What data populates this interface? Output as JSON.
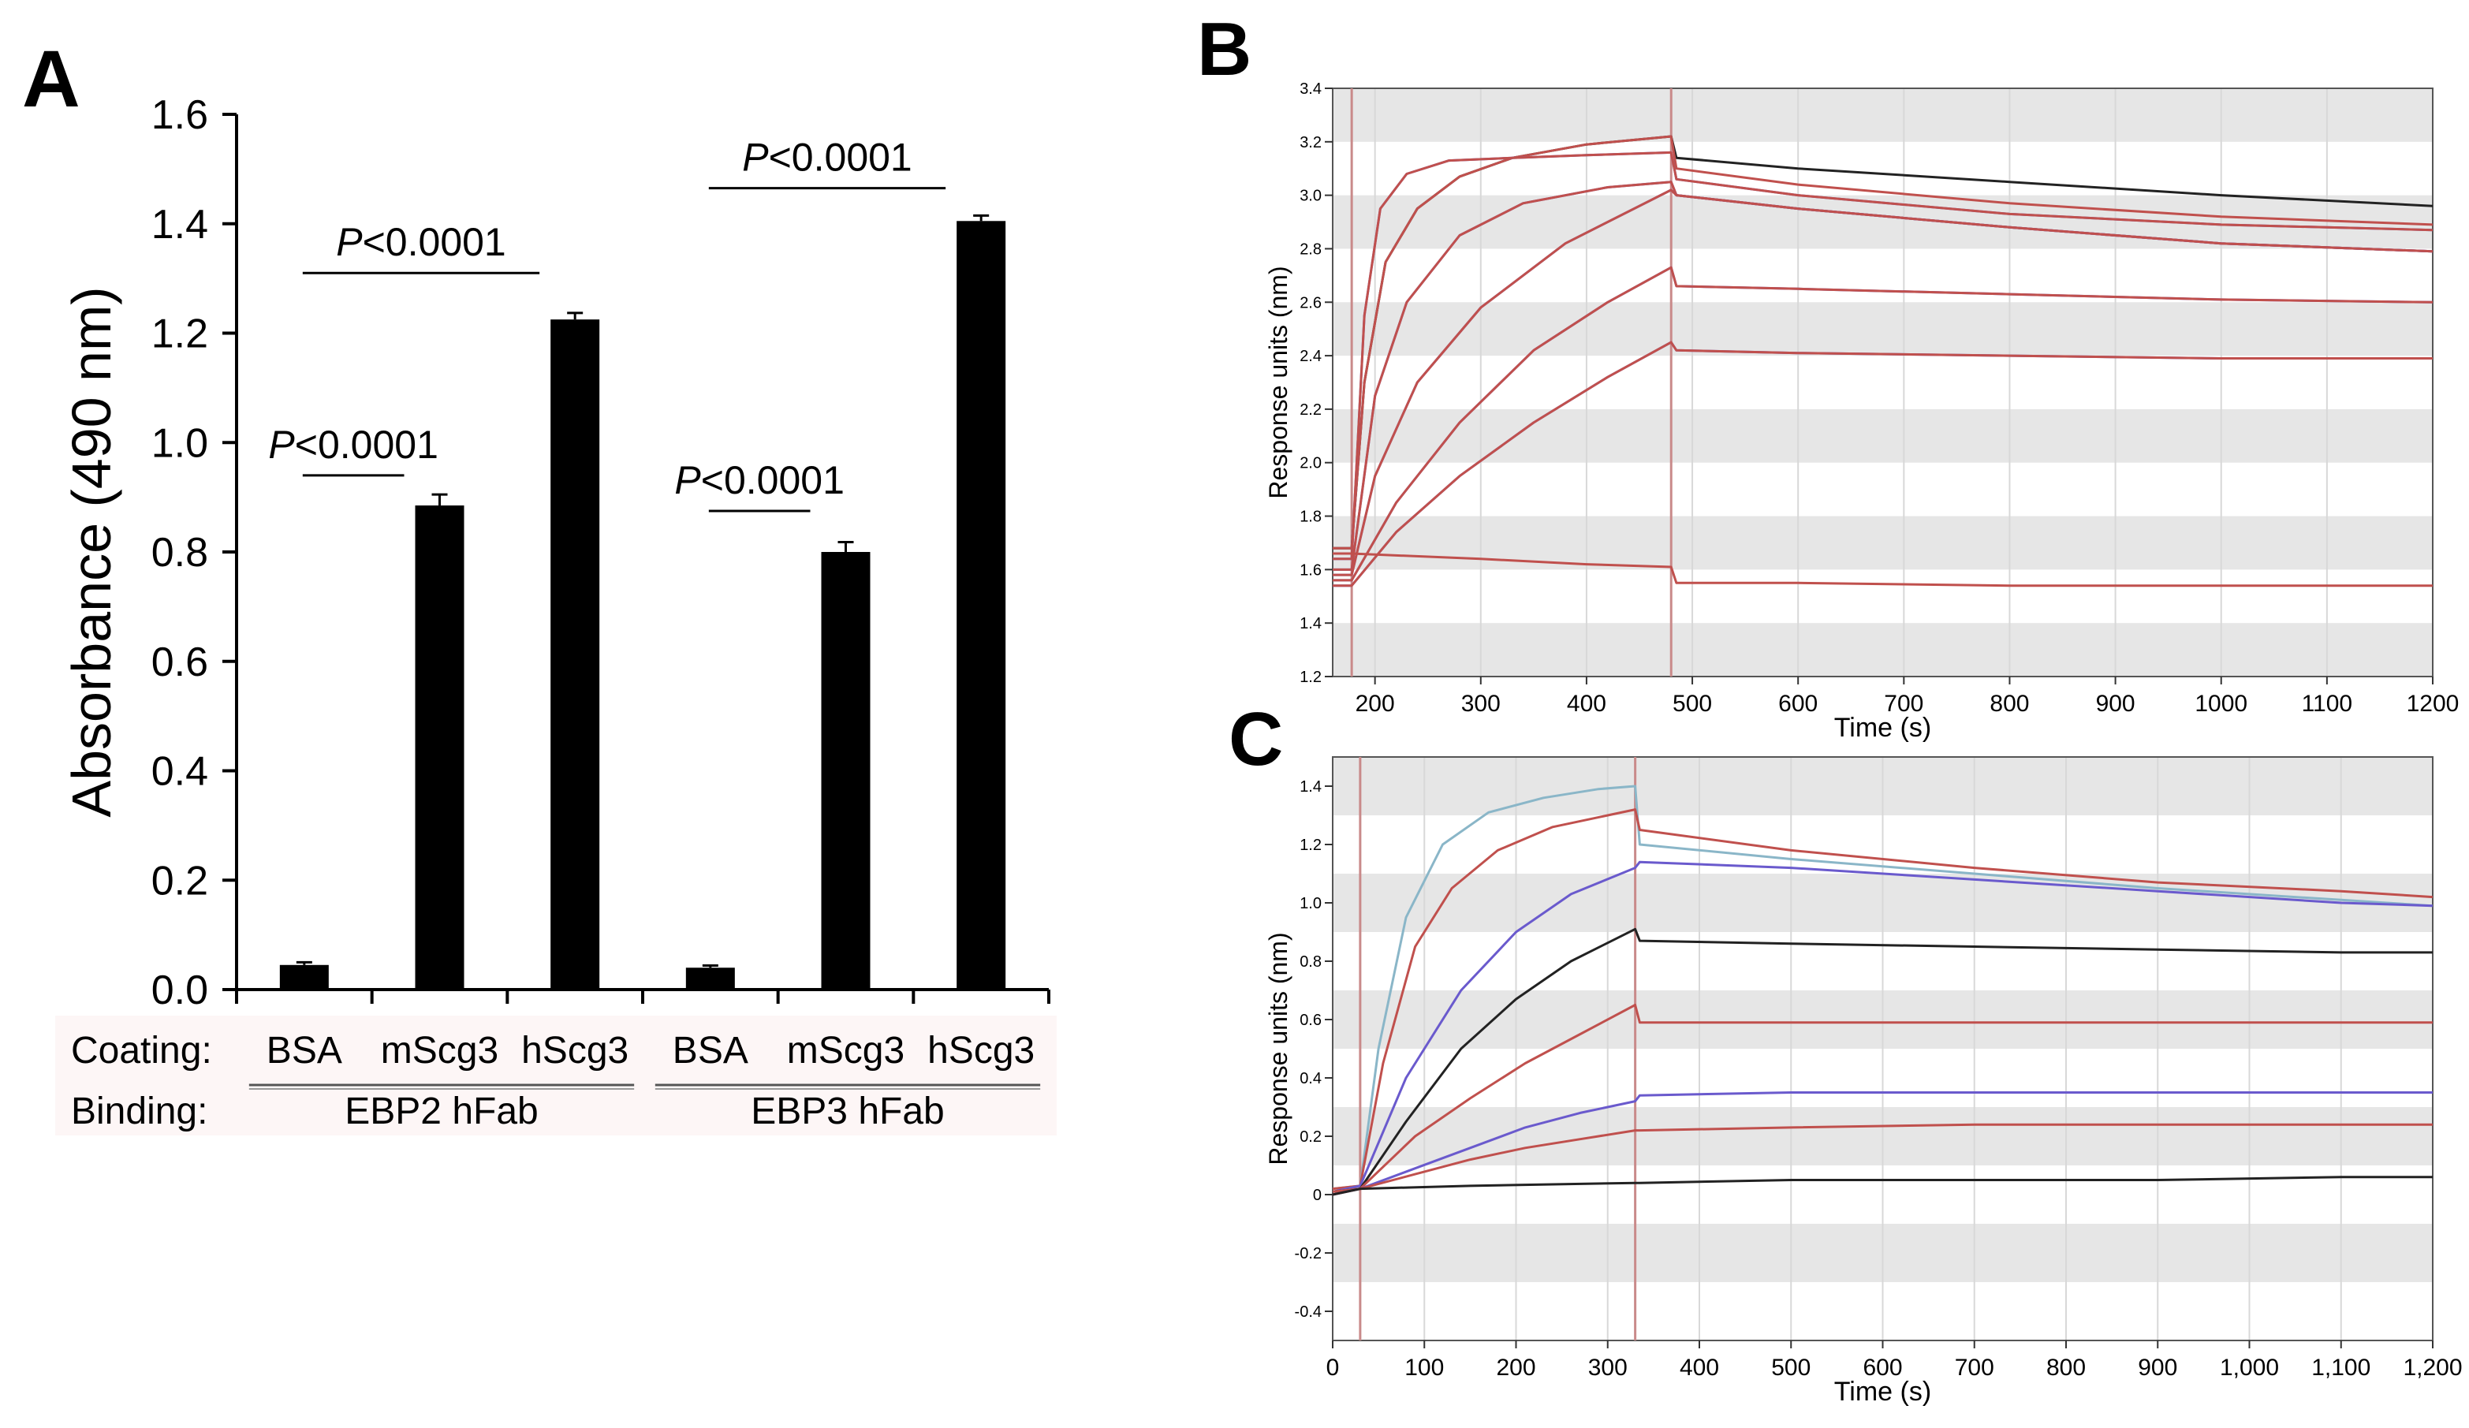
{
  "colors": {
    "bar": "#000000",
    "band": "#e6e6e6",
    "marker": "#c98a8a",
    "label_bg": "#fdf6f6",
    "black": "#222222",
    "blue": "#6a5acd",
    "red": "#c0504d",
    "cyan": "#8ab6c8"
  },
  "chart_data": [
    {
      "panel": "A",
      "type": "bar",
      "ylabel": "Absorbance (490 nm)",
      "ylim": [
        0,
        1.6
      ],
      "yticks": [
        "0.0",
        "0.2",
        "0.4",
        "0.6",
        "0.8",
        "1.0",
        "1.2",
        "1.4",
        "1.6"
      ],
      "categories": [
        "BSA",
        "mScg3",
        "hScg3",
        "BSA",
        "mScg3",
        "hScg3"
      ],
      "values": [
        0.045,
        0.885,
        1.225,
        0.04,
        0.8,
        1.405
      ],
      "errors": [
        0.005,
        0.02,
        0.012,
        0.004,
        0.018,
        0.01
      ],
      "row_labels": {
        "coating": "Coating:",
        "binding": "Binding:"
      },
      "groups": [
        "EBP2 hFab",
        "EBP3 hFab"
      ],
      "comparisons": [
        {
          "p": "P",
          "rest": "<0.0001",
          "from": 0,
          "to": 1,
          "y": 0.94
        },
        {
          "p": "P",
          "rest": "<0.0001",
          "from": 0,
          "to": 2,
          "y": 1.31
        },
        {
          "p": "P",
          "rest": "<0.0001",
          "from": 3,
          "to": 4,
          "y": 0.875
        },
        {
          "p": "P",
          "rest": "<0.0001",
          "from": 3,
          "to": 5,
          "y": 1.465
        }
      ]
    },
    {
      "panel": "B",
      "type": "line",
      "xlabel": "Time (s)",
      "ylabel": "Response units (nm)",
      "xlim": [
        160,
        1200
      ],
      "ylim": [
        1.2,
        3.4
      ],
      "xticks": [
        200,
        300,
        400,
        500,
        600,
        700,
        800,
        900,
        1000,
        1100,
        1200
      ],
      "xtick_labels": [
        "200",
        "300",
        "400",
        "500",
        "600",
        "700",
        "800",
        "900",
        "1000",
        "1100",
        "1200"
      ],
      "yticks": [
        1.2,
        1.4,
        1.6,
        1.8,
        2.0,
        2.2,
        2.4,
        2.6,
        2.8,
        3.0,
        3.2,
        3.4
      ],
      "ytick_labels": [
        "1.2",
        "1.4",
        "1.6",
        "1.8",
        "2.0",
        "2.2",
        "2.4",
        "2.6",
        "2.8",
        "3.0",
        "3.2",
        "3.4"
      ],
      "markers": [
        178,
        480
      ],
      "series": [
        {
          "name": "trace-1-data",
          "color": "#222222",
          "x": [
            160,
            178,
            190,
            210,
            240,
            280,
            330,
            400,
            480,
            485,
            600,
            800,
            1000,
            1200
          ],
          "y": [
            1.68,
            1.68,
            2.3,
            2.75,
            2.95,
            3.07,
            3.14,
            3.19,
            3.22,
            3.14,
            3.1,
            3.05,
            3.0,
            2.96
          ]
        },
        {
          "name": "trace-1-fit",
          "color": "#c0504d",
          "x": [
            160,
            178,
            190,
            210,
            240,
            280,
            330,
            400,
            480,
            485,
            600,
            800,
            1000,
            1200
          ],
          "y": [
            1.68,
            1.68,
            2.3,
            2.75,
            2.95,
            3.07,
            3.14,
            3.19,
            3.22,
            3.1,
            3.04,
            2.97,
            2.92,
            2.89
          ]
        },
        {
          "name": "trace-2-data",
          "color": "#6a5acd",
          "x": [
            160,
            178,
            190,
            205,
            230,
            270,
            330,
            400,
            480,
            485,
            600,
            800,
            1000,
            1200
          ],
          "y": [
            1.64,
            1.64,
            2.55,
            2.95,
            3.08,
            3.13,
            3.14,
            3.15,
            3.16,
            3.06,
            3.0,
            2.93,
            2.89,
            2.87
          ]
        },
        {
          "name": "trace-2-fit",
          "color": "#c0504d",
          "x": [
            160,
            178,
            190,
            205,
            230,
            270,
            330,
            400,
            480,
            485,
            600,
            800,
            1000,
            1200
          ],
          "y": [
            1.64,
            1.64,
            2.55,
            2.95,
            3.08,
            3.13,
            3.14,
            3.15,
            3.16,
            3.06,
            3.0,
            2.93,
            2.89,
            2.87
          ]
        },
        {
          "name": "trace-3-data",
          "color": "#6a5acd",
          "x": [
            160,
            178,
            200,
            230,
            280,
            340,
            420,
            480,
            485,
            600,
            800,
            1000,
            1200
          ],
          "y": [
            1.6,
            1.6,
            2.25,
            2.6,
            2.85,
            2.97,
            3.03,
            3.05,
            3.0,
            2.95,
            2.88,
            2.82,
            2.79
          ]
        },
        {
          "name": "trace-3-fit",
          "color": "#c0504d",
          "x": [
            160,
            178,
            200,
            230,
            280,
            340,
            420,
            480,
            485,
            600,
            800,
            1000,
            1200
          ],
          "y": [
            1.6,
            1.6,
            2.25,
            2.6,
            2.85,
            2.97,
            3.03,
            3.05,
            3.0,
            2.95,
            2.88,
            2.82,
            2.79
          ]
        },
        {
          "name": "trace-4-data",
          "color": "#6a5acd",
          "x": [
            160,
            178,
            200,
            240,
            300,
            380,
            480,
            485,
            600,
            800,
            1000,
            1200
          ],
          "y": [
            1.58,
            1.58,
            1.95,
            2.3,
            2.58,
            2.82,
            3.02,
            3.0,
            2.95,
            2.88,
            2.82,
            2.79
          ]
        },
        {
          "name": "trace-4-fit",
          "color": "#c0504d",
          "x": [
            160,
            178,
            200,
            240,
            300,
            380,
            480,
            485,
            600,
            800,
            1000,
            1200
          ],
          "y": [
            1.58,
            1.58,
            1.95,
            2.3,
            2.58,
            2.82,
            3.02,
            3.0,
            2.95,
            2.88,
            2.82,
            2.79
          ]
        },
        {
          "name": "trace-5-data",
          "color": "#6a5acd",
          "x": [
            160,
            178,
            220,
            280,
            350,
            420,
            480,
            485,
            600,
            800,
            1000,
            1200
          ],
          "y": [
            1.56,
            1.56,
            1.85,
            2.15,
            2.42,
            2.6,
            2.73,
            2.66,
            2.65,
            2.63,
            2.61,
            2.6
          ]
        },
        {
          "name": "trace-5-fit",
          "color": "#c0504d",
          "x": [
            160,
            178,
            220,
            280,
            350,
            420,
            480,
            485,
            600,
            800,
            1000,
            1200
          ],
          "y": [
            1.56,
            1.56,
            1.85,
            2.15,
            2.42,
            2.6,
            2.73,
            2.66,
            2.65,
            2.63,
            2.61,
            2.6
          ]
        },
        {
          "name": "trace-6-data",
          "color": "#6a5acd",
          "x": [
            160,
            178,
            220,
            280,
            350,
            420,
            480,
            485,
            600,
            800,
            1000,
            1200
          ],
          "y": [
            1.54,
            1.54,
            1.74,
            1.95,
            2.15,
            2.32,
            2.45,
            2.42,
            2.41,
            2.4,
            2.39,
            2.39
          ]
        },
        {
          "name": "trace-6-fit",
          "color": "#c0504d",
          "x": [
            160,
            178,
            220,
            280,
            350,
            420,
            480,
            485,
            600,
            800,
            1000,
            1200
          ],
          "y": [
            1.54,
            1.54,
            1.74,
            1.95,
            2.15,
            2.32,
            2.45,
            2.42,
            2.41,
            2.4,
            2.39,
            2.39
          ]
        },
        {
          "name": "trace-7-data",
          "color": "#c0504d",
          "x": [
            160,
            178,
            300,
            400,
            480,
            485,
            600,
            800,
            1000,
            1200
          ],
          "y": [
            1.66,
            1.66,
            1.64,
            1.62,
            1.61,
            1.55,
            1.55,
            1.54,
            1.54,
            1.54
          ]
        }
      ]
    },
    {
      "panel": "C",
      "type": "line",
      "xlabel": "Time (s)",
      "ylabel": "Response units (nm)",
      "xlim": [
        0,
        1200
      ],
      "ylim": [
        -0.5,
        1.5
      ],
      "xticks": [
        0,
        100,
        200,
        300,
        400,
        500,
        600,
        700,
        800,
        900,
        1000,
        1100,
        1200
      ],
      "xtick_labels": [
        "0",
        "100",
        "200",
        "300",
        "400",
        "500",
        "600",
        "700",
        "800",
        "900",
        "1,000",
        "1,100",
        "1,200"
      ],
      "yticks": [
        -0.4,
        -0.2,
        0,
        0.2,
        0.4,
        0.6,
        0.8,
        1.0,
        1.2,
        1.4
      ],
      "ytick_labels": [
        "-0.4",
        "-0.2",
        "0",
        "0.2",
        "0.4",
        "0.6",
        "0.8",
        "1.0",
        "1.2",
        "1.4"
      ],
      "markers": [
        30,
        330
      ],
      "series": [
        {
          "name": "trace-1",
          "color": "#8ab6c8",
          "x": [
            0,
            30,
            50,
            80,
            120,
            170,
            230,
            290,
            330,
            335,
            500,
            700,
            900,
            1100,
            1200
          ],
          "y": [
            0.02,
            0.03,
            0.5,
            0.95,
            1.2,
            1.31,
            1.36,
            1.39,
            1.4,
            1.2,
            1.15,
            1.1,
            1.05,
            1.01,
            0.99
          ]
        },
        {
          "name": "trace-2",
          "color": "#c0504d",
          "x": [
            0,
            30,
            55,
            90,
            130,
            180,
            240,
            300,
            330,
            335,
            500,
            700,
            900,
            1100,
            1200
          ],
          "y": [
            0.02,
            0.03,
            0.45,
            0.85,
            1.05,
            1.18,
            1.26,
            1.3,
            1.32,
            1.25,
            1.18,
            1.12,
            1.07,
            1.04,
            1.02
          ]
        },
        {
          "name": "trace-3",
          "color": "#6a5acd",
          "x": [
            0,
            30,
            80,
            140,
            200,
            260,
            330,
            335,
            500,
            700,
            900,
            1100,
            1200
          ],
          "y": [
            0.01,
            0.03,
            0.4,
            0.7,
            0.9,
            1.03,
            1.12,
            1.14,
            1.12,
            1.08,
            1.04,
            1.0,
            0.99
          ]
        },
        {
          "name": "trace-4",
          "color": "#222222",
          "x": [
            0,
            30,
            80,
            140,
            200,
            260,
            330,
            335,
            500,
            700,
            900,
            1100,
            1200
          ],
          "y": [
            0.01,
            0.02,
            0.25,
            0.5,
            0.67,
            0.8,
            0.91,
            0.87,
            0.86,
            0.85,
            0.84,
            0.83,
            0.83
          ]
        },
        {
          "name": "trace-5",
          "color": "#c0504d",
          "x": [
            0,
            30,
            90,
            150,
            210,
            270,
            330,
            335,
            500,
            700,
            900,
            1100,
            1200
          ],
          "y": [
            0.01,
            0.02,
            0.2,
            0.33,
            0.45,
            0.55,
            0.65,
            0.59,
            0.59,
            0.59,
            0.59,
            0.59,
            0.59
          ]
        },
        {
          "name": "trace-6",
          "color": "#6a5acd",
          "x": [
            0,
            30,
            90,
            150,
            210,
            270,
            330,
            335,
            500,
            700,
            900,
            1100,
            1200
          ],
          "y": [
            0.0,
            0.02,
            0.09,
            0.16,
            0.23,
            0.28,
            0.32,
            0.34,
            0.35,
            0.35,
            0.35,
            0.35,
            0.35
          ]
        },
        {
          "name": "trace-7",
          "color": "#c0504d",
          "x": [
            0,
            30,
            90,
            150,
            210,
            270,
            330,
            335,
            500,
            700,
            900,
            1100,
            1200
          ],
          "y": [
            0.0,
            0.02,
            0.07,
            0.12,
            0.16,
            0.19,
            0.22,
            0.22,
            0.23,
            0.24,
            0.24,
            0.24,
            0.24
          ]
        },
        {
          "name": "trace-8",
          "color": "#222222",
          "x": [
            0,
            30,
            150,
            330,
            335,
            500,
            700,
            900,
            1100,
            1200
          ],
          "y": [
            0.0,
            0.02,
            0.03,
            0.04,
            0.04,
            0.05,
            0.05,
            0.05,
            0.06,
            0.06
          ]
        }
      ]
    }
  ],
  "panel_labels": {
    "a": "A",
    "b": "B",
    "c": "C"
  }
}
